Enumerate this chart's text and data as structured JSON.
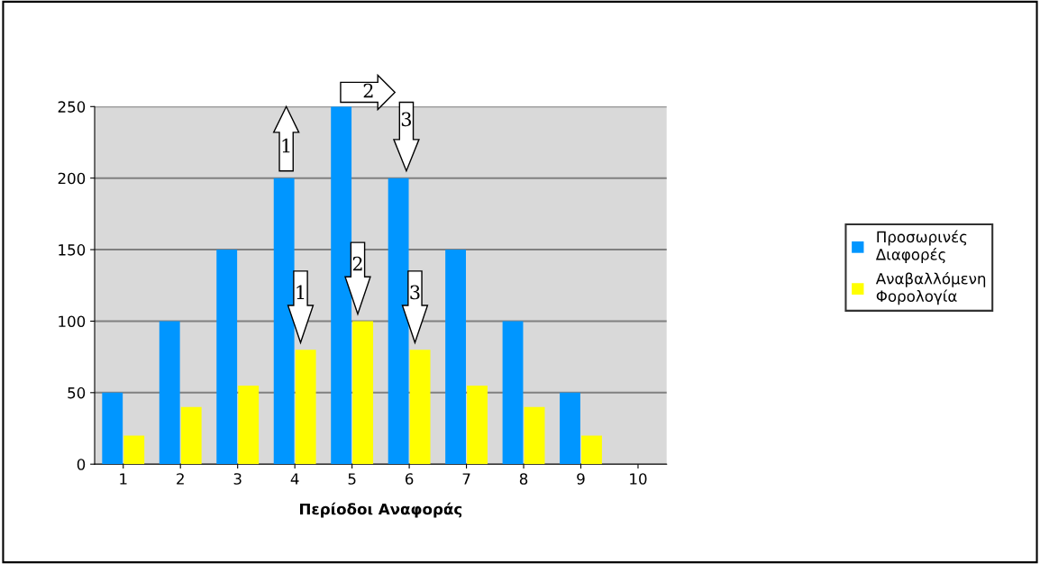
{
  "chart_data": {
    "type": "bar",
    "xlabel": "Περίοδοι Αναφοράς",
    "categories": [
      "1",
      "2",
      "3",
      "4",
      "5",
      "6",
      "7",
      "8",
      "9",
      "10"
    ],
    "series": [
      {
        "name": "Προσωρινές Διαφορές",
        "color": "#0096ff",
        "values": [
          50,
          100,
          150,
          200,
          250,
          200,
          150,
          100,
          50,
          0
        ]
      },
      {
        "name": "Αναβαλλόμενη Φορολογία",
        "color": "#ffff00",
        "values": [
          20,
          40,
          55,
          80,
          100,
          80,
          55,
          40,
          20,
          0
        ]
      }
    ],
    "ylim": [
      0,
      250
    ],
    "yticks": [
      0,
      50,
      100,
      150,
      200,
      250
    ],
    "grid": "y",
    "legend": "right",
    "annotations": [
      {
        "text": "1",
        "x": "4",
        "y": 200
      },
      {
        "text": "2",
        "x": "5",
        "y": 250
      },
      {
        "text": "3",
        "x": "6",
        "y": 200
      },
      {
        "text": "1",
        "x": "4",
        "y": 80
      },
      {
        "text": "2",
        "x": "5",
        "y": 100
      },
      {
        "text": "3",
        "x": "6",
        "y": 80
      }
    ]
  }
}
